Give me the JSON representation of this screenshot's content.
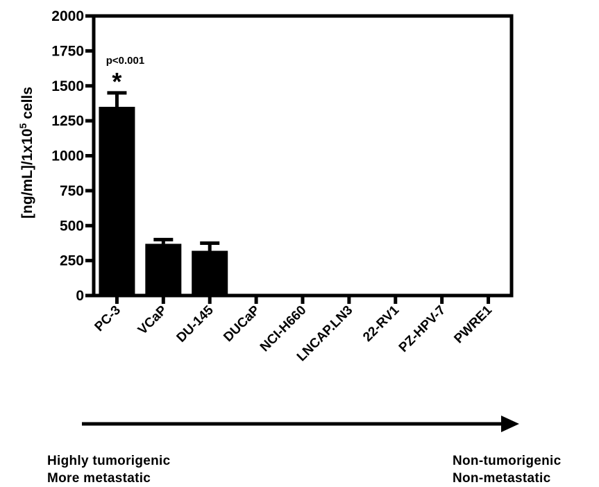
{
  "chart_data": {
    "type": "bar",
    "ylabel_main": "[ng/mL]/1x10",
    "ylabel_sup": "5",
    "ylabel_tail": " cells",
    "ylim": [
      0,
      2000
    ],
    "yticks": [
      0,
      250,
      500,
      750,
      1000,
      1250,
      1500,
      1750,
      2000
    ],
    "categories": [
      "PC-3",
      "VCaP",
      "DU-145",
      "DUCaP",
      "NCI-H660",
      "LNCAP.LN3",
      "22-RV1",
      "PZ-HPV-7",
      "PWRE1"
    ],
    "values": [
      1350,
      370,
      320,
      5,
      5,
      5,
      5,
      3,
      3
    ],
    "errors": [
      100,
      30,
      55,
      0,
      0,
      0,
      0,
      0,
      0
    ],
    "annotation": {
      "category": "PC-3",
      "pvalue": "p<0.001",
      "star": "*"
    },
    "bar_color": "#000000"
  },
  "arrow": {
    "left_caption": [
      "Highly tumorigenic",
      "More metastatic"
    ],
    "right_caption": [
      "Non-tumorigenic",
      "Non-metastatic"
    ]
  }
}
